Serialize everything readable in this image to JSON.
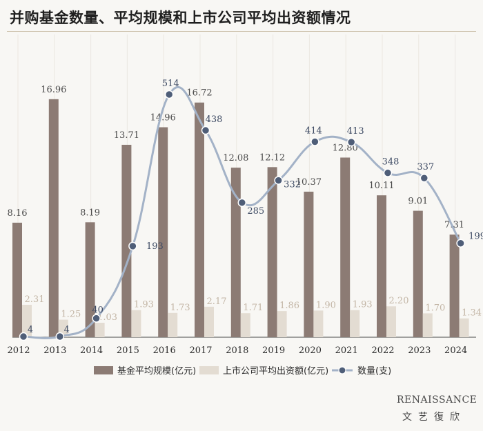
{
  "chart_data": {
    "type": "bar",
    "title": "并购基金数量、平均规模和上市公司平均出资额情况",
    "categories": [
      "2012",
      "2013",
      "2014",
      "2015",
      "2016",
      "2017",
      "2018",
      "2019",
      "2020",
      "2021",
      "2022",
      "2023",
      "2024"
    ],
    "series": [
      {
        "name": "基金平均规模(亿元)",
        "kind": "bar",
        "color": "#8c7b74",
        "values": [
          8.16,
          16.96,
          8.19,
          13.71,
          14.96,
          16.72,
          12.08,
          12.12,
          10.37,
          12.8,
          10.11,
          9.01,
          7.31
        ],
        "labels": [
          "8.16",
          "16.96",
          "8.19",
          "13.71",
          "14.96",
          "16.72",
          "12.08",
          "12.12",
          "10.37",
          "12.80",
          "10.11",
          "9.01",
          "7.31"
        ]
      },
      {
        "name": "上市公司平均出资额(亿元)",
        "kind": "bar",
        "color": "#e3dcd2",
        "values": [
          2.31,
          1.25,
          1.03,
          1.93,
          1.73,
          2.17,
          1.71,
          1.86,
          1.9,
          1.93,
          2.2,
          1.7,
          1.34
        ],
        "labels": [
          "2.31",
          "1.25",
          "1.03",
          "1.93",
          "1.73",
          "2.17",
          "1.71",
          "1.86",
          "1.90",
          "1.93",
          "2.20",
          "1.70",
          "1.34"
        ]
      },
      {
        "name": "数量(支)",
        "kind": "line",
        "color": "#a3b2c7",
        "marker_color": "#4f5e78",
        "values": [
          4,
          4,
          40,
          193,
          514,
          438,
          285,
          332,
          414,
          413,
          348,
          337,
          199
        ],
        "labels": [
          "4",
          "4",
          "40",
          "193",
          "514",
          "438",
          "285",
          "332",
          "414",
          "413",
          "348",
          "337",
          "199"
        ]
      }
    ],
    "legend_position": "bottom",
    "grid": false
  },
  "brand": {
    "en": "RENAISSANCE",
    "cn": "文艺復欣"
  }
}
